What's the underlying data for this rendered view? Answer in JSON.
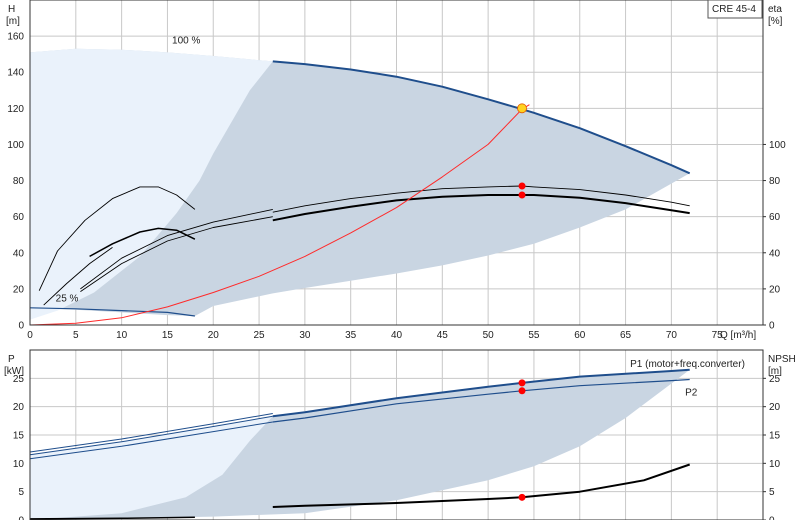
{
  "chart_data": [
    {
      "type": "line",
      "name": "pump-curve",
      "model_label": "CRE 45-4",
      "ylabel_left": [
        "H",
        "[m]"
      ],
      "ylabel_right": [
        "eta",
        "[%]"
      ],
      "xlabel": "Q [m³/h]",
      "xlim": [
        0,
        80
      ],
      "ylim_left": [
        0,
        180
      ],
      "ylim_right": [
        0,
        180
      ],
      "x_ticks": [
        0,
        5,
        10,
        15,
        20,
        25,
        30,
        35,
        40,
        45,
        50,
        55,
        60,
        65,
        70,
        75
      ],
      "y_ticks_left": [
        0,
        20,
        40,
        60,
        80,
        100,
        120,
        140,
        160
      ],
      "y_ticks_right": [
        0,
        20,
        40,
        60,
        80,
        100
      ],
      "annotations": [
        {
          "text": "100 %",
          "x": 15.5,
          "y": 156
        },
        {
          "text": "25 %",
          "x": 2.8,
          "y": 13
        }
      ],
      "shaded_region": {
        "top": [
          [
            0,
            151
          ],
          [
            5,
            153
          ],
          [
            10,
            152.5
          ],
          [
            15,
            151
          ],
          [
            20,
            149
          ],
          [
            26.5,
            146
          ],
          [
            30,
            144.5
          ],
          [
            35,
            141.5
          ],
          [
            40,
            137.5
          ],
          [
            45,
            132
          ],
          [
            50,
            125
          ],
          [
            53.7,
            119.5
          ],
          [
            55,
            117.5
          ],
          [
            60,
            109
          ],
          [
            65,
            99
          ],
          [
            70,
            88.5
          ],
          [
            72,
            84
          ]
        ],
        "bottom": [
          [
            72,
            84
          ],
          [
            65,
            64
          ],
          [
            60,
            54
          ],
          [
            55,
            45
          ],
          [
            50,
            38.5
          ],
          [
            45,
            33
          ],
          [
            40,
            28.5
          ],
          [
            35,
            24.5
          ],
          [
            30,
            20.5
          ],
          [
            26.5,
            17.5
          ],
          [
            20,
            10.5
          ],
          [
            18,
            5
          ],
          [
            15,
            5.5
          ],
          [
            10,
            7
          ],
          [
            5,
            8.5
          ],
          [
            0,
            9.5
          ]
        ]
      },
      "light_region": {
        "outline": [
          [
            0,
            151
          ],
          [
            5,
            153
          ],
          [
            10,
            152.5
          ],
          [
            15,
            151
          ],
          [
            20,
            149
          ],
          [
            26.5,
            146
          ],
          [
            24,
            130
          ],
          [
            20,
            95
          ],
          [
            18.5,
            80
          ],
          [
            16,
            62
          ],
          [
            12,
            38
          ],
          [
            7,
            18
          ],
          [
            3,
            8
          ],
          [
            0,
            3
          ]
        ]
      },
      "series": [
        {
          "role": "head-100",
          "color": "#1f4e8c",
          "width": 2,
          "points": [
            [
              26.5,
              146
            ],
            [
              30,
              144.5
            ],
            [
              35,
              141.5
            ],
            [
              40,
              137.5
            ],
            [
              45,
              132
            ],
            [
              50,
              125
            ],
            [
              53.7,
              119.5
            ],
            [
              55,
              117.5
            ],
            [
              60,
              109
            ],
            [
              65,
              99
            ],
            [
              70,
              88.5
            ],
            [
              72,
              84
            ]
          ]
        },
        {
          "role": "head-min",
          "color": "#1f4e8c",
          "width": 1.2,
          "points": [
            [
              0,
              9.5
            ],
            [
              5,
              9
            ],
            [
              10,
              8
            ],
            [
              15,
              7
            ],
            [
              18,
              5
            ]
          ]
        },
        {
          "role": "eta-100",
          "color": "#000000",
          "width": 2,
          "points": [
            [
              26.5,
              58
            ],
            [
              30,
              61.5
            ],
            [
              35,
              65.5
            ],
            [
              40,
              69
            ],
            [
              45,
              71
            ],
            [
              50,
              72
            ],
            [
              53.7,
              72
            ],
            [
              55,
              72
            ],
            [
              60,
              70.5
            ],
            [
              65,
              67.5
            ],
            [
              70,
              63.5
            ],
            [
              72,
              62
            ]
          ]
        },
        {
          "role": "eta-100-thin",
          "color": "#000000",
          "width": 0.9,
          "points": [
            [
              26.5,
              62.5
            ],
            [
              30,
              66
            ],
            [
              35,
              70
            ],
            [
              40,
              73
            ],
            [
              45,
              75.5
            ],
            [
              50,
              76.5
            ],
            [
              53.7,
              77
            ],
            [
              55,
              76.5
            ],
            [
              60,
              75
            ],
            [
              65,
              72
            ],
            [
              70,
              68
            ],
            [
              72,
              66
            ]
          ]
        },
        {
          "role": "eta-low-1",
          "color": "#000000",
          "width": 0.9,
          "points": [
            [
              5.5,
              18.5
            ],
            [
              10,
              34
            ],
            [
              15,
              46.5
            ],
            [
              20,
              54
            ],
            [
              26.5,
              60
            ]
          ]
        },
        {
          "role": "eta-low-2",
          "color": "#000000",
          "width": 0.9,
          "points": [
            [
              5.5,
              20
            ],
            [
              10,
              37
            ],
            [
              15,
              49.5
            ],
            [
              20,
              57
            ],
            [
              26.5,
              64
            ]
          ]
        },
        {
          "role": "eta-mid",
          "color": "#000000",
          "width": 1.5,
          "points": [
            [
              6.5,
              38
            ],
            [
              9,
              45
            ],
            [
              12,
              51.5
            ],
            [
              14,
              53.5
            ],
            [
              16,
              52.5
            ],
            [
              18,
              47.5
            ]
          ]
        },
        {
          "role": "eta-high",
          "color": "#000000",
          "width": 0.9,
          "points": [
            [
              1,
              19
            ],
            [
              3,
              41
            ],
            [
              6,
              58
            ],
            [
              9,
              70
            ],
            [
              12,
              76.5
            ],
            [
              14,
              76.5
            ],
            [
              16,
              72
            ],
            [
              18,
              64
            ]
          ]
        },
        {
          "role": "eta-short",
          "color": "#000000",
          "width": 0.9,
          "points": [
            [
              1.5,
              11
            ],
            [
              4,
              23
            ],
            [
              6.5,
              34
            ],
            [
              9,
              43
            ]
          ]
        },
        {
          "role": "system",
          "color": "#ff2a2a",
          "width": 1,
          "points": [
            [
              0,
              0
            ],
            [
              5,
              1
            ],
            [
              10,
              4
            ],
            [
              15,
              10
            ],
            [
              20,
              18
            ],
            [
              25,
              27
            ],
            [
              30,
              38
            ],
            [
              35,
              51
            ],
            [
              40,
              65
            ],
            [
              45,
              82
            ],
            [
              50,
              100
            ],
            [
              53.7,
              119.5
            ],
            [
              54.5,
              122
            ]
          ]
        }
      ],
      "markers": [
        {
          "role": "operating-point",
          "x": 53.7,
          "y": 120,
          "color": "#ffd21f"
        },
        {
          "role": "point",
          "x": 53.7,
          "y": 77,
          "color": "#ff0000"
        },
        {
          "role": "point",
          "x": 53.7,
          "y": 72,
          "color": "#ff0000"
        }
      ]
    },
    {
      "type": "line",
      "name": "power-npsh",
      "ylabel_left": [
        "P",
        "[kW]"
      ],
      "ylabel_right": [
        "NPSH",
        "[m]"
      ],
      "xlim": [
        0,
        80
      ],
      "ylim_left": [
        0,
        30
      ],
      "ylim_right": [
        0,
        30
      ],
      "y_ticks_left": [
        0,
        5,
        10,
        15,
        20,
        25
      ],
      "y_ticks_right": [
        0,
        5,
        10,
        15,
        20,
        25
      ],
      "labels": [
        {
          "text": "P1 (motor+freq.converter)",
          "x": 65.5,
          "y": 27
        },
        {
          "text": "P2",
          "x": 71.5,
          "y": 22
        }
      ],
      "shaded_region": {
        "top": [
          [
            0,
            11.5
          ],
          [
            10,
            13.8
          ],
          [
            20,
            16.5
          ],
          [
            26.5,
            18.3
          ],
          [
            30,
            19
          ],
          [
            40,
            21.5
          ],
          [
            50,
            23.5
          ],
          [
            53.7,
            24.2
          ],
          [
            60,
            25.3
          ],
          [
            70,
            26.3
          ],
          [
            72,
            26.5
          ]
        ],
        "bottom": [
          [
            72,
            26.5
          ],
          [
            65,
            18
          ],
          [
            60,
            13
          ],
          [
            55,
            9.5
          ],
          [
            50,
            7
          ],
          [
            40,
            3.5
          ],
          [
            30,
            1.2
          ],
          [
            20,
            0.6
          ],
          [
            10,
            0.3
          ],
          [
            0,
            0
          ]
        ]
      },
      "light_region": {
        "outline": [
          [
            0,
            11.5
          ],
          [
            10,
            13.8
          ],
          [
            20,
            16.5
          ],
          [
            26.5,
            18.3
          ],
          [
            24,
            14
          ],
          [
            21,
            8
          ],
          [
            17,
            4
          ],
          [
            10,
            1.2
          ],
          [
            0,
            0
          ]
        ]
      },
      "series": [
        {
          "role": "p1-main",
          "color": "#1f4e8c",
          "width": 2,
          "points": [
            [
              26.5,
              18.3
            ],
            [
              30,
              19
            ],
            [
              40,
              21.5
            ],
            [
              50,
              23.5
            ],
            [
              53.7,
              24.2
            ],
            [
              60,
              25.3
            ],
            [
              70,
              26.3
            ],
            [
              72,
              26.5
            ]
          ]
        },
        {
          "role": "p2-main",
          "color": "#1f4e8c",
          "width": 1.2,
          "points": [
            [
              26.5,
              17.3
            ],
            [
              30,
              18
            ],
            [
              40,
              20.5
            ],
            [
              50,
              22.2
            ],
            [
              53.7,
              22.8
            ],
            [
              60,
              23.7
            ],
            [
              70,
              24.6
            ],
            [
              72,
              24.8
            ]
          ]
        },
        {
          "role": "p1-low",
          "color": "#1f4e8c",
          "width": 1,
          "points": [
            [
              0,
              11.5
            ],
            [
              10,
              13.8
            ],
            [
              20,
              16.5
            ],
            [
              26.5,
              18.3
            ]
          ]
        },
        {
          "role": "p1-low-b",
          "color": "#1f4e8c",
          "width": 1,
          "points": [
            [
              0,
              12
            ],
            [
              10,
              14.3
            ],
            [
              20,
              17
            ],
            [
              26.5,
              18.8
            ]
          ]
        },
        {
          "role": "p2-low",
          "color": "#1f4e8c",
          "width": 1,
          "points": [
            [
              0,
              10.8
            ],
            [
              10,
              13
            ],
            [
              20,
              15.6
            ],
            [
              26.5,
              17.3
            ]
          ]
        },
        {
          "role": "npsh-main",
          "color": "#000000",
          "width": 2,
          "points": [
            [
              26.5,
              2.3
            ],
            [
              30,
              2.5
            ],
            [
              40,
              3
            ],
            [
              50,
              3.7
            ],
            [
              53.7,
              4
            ],
            [
              60,
              5
            ],
            [
              67,
              7
            ],
            [
              72,
              9.8
            ]
          ]
        },
        {
          "role": "npsh-low",
          "color": "#000000",
          "width": 1.5,
          "points": [
            [
              0,
              0.2
            ],
            [
              10,
              0.3
            ],
            [
              18,
              0.5
            ]
          ]
        }
      ],
      "markers": [
        {
          "role": "point",
          "x": 53.7,
          "y": 24.2,
          "color": "#ff0000"
        },
        {
          "role": "point",
          "x": 53.7,
          "y": 22.8,
          "color": "#ff0000"
        },
        {
          "role": "point",
          "x": 53.7,
          "y": 4,
          "color": "#ff0000"
        }
      ]
    }
  ]
}
